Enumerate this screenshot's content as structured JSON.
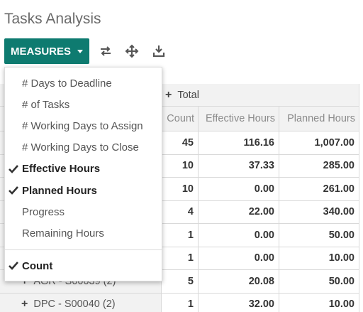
{
  "header": {
    "title": "Tasks Analysis"
  },
  "toolbar": {
    "measures_button": "MEASURES"
  },
  "measures_menu": {
    "items": [
      {
        "label": "# Days to Deadline",
        "checked": false
      },
      {
        "label": "# of Tasks",
        "checked": false
      },
      {
        "label": "# Working Days to Assign",
        "checked": false
      },
      {
        "label": "# Working Days to Close",
        "checked": false
      },
      {
        "label": "Effective Hours",
        "checked": true
      },
      {
        "label": "Planned Hours",
        "checked": true
      },
      {
        "label": "Progress",
        "checked": false
      },
      {
        "label": "Remaining Hours",
        "checked": false
      }
    ],
    "count": {
      "label": "Count",
      "checked": true
    }
  },
  "table": {
    "column_group": "Total",
    "columns": [
      "Count",
      "Effective Hours",
      "Planned Hours"
    ],
    "rows": [
      {
        "cells": [
          "45",
          "116.16",
          "1,007.00"
        ]
      },
      {
        "cells": [
          "10",
          "37.33",
          "285.00"
        ]
      },
      {
        "cells": [
          "10",
          "0.00",
          "261.00"
        ]
      },
      {
        "cells": [
          "4",
          "22.00",
          "340.00"
        ]
      },
      {
        "cells": [
          "1",
          "0.00",
          "50.00"
        ]
      },
      {
        "cells": [
          "1",
          "0.00",
          "10.00"
        ]
      },
      {
        "label": "AGR - S00039 (2)",
        "cells": [
          "5",
          "20.08",
          "50.00"
        ]
      },
      {
        "label": "DPC - S00040 (2)",
        "cells": [
          "1",
          "32.00",
          "10.00"
        ]
      }
    ]
  }
}
